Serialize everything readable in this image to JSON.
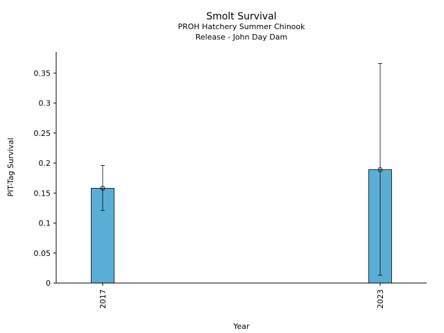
{
  "chart_data": {
    "type": "bar",
    "title": "Smolt Survival",
    "subtitle": [
      "PROH Hatchery Summer Chinook",
      "Release - John Day Dam"
    ],
    "xlabel": "Year",
    "ylabel": "PIT-Tag Survival",
    "categories": [
      "2017",
      "2023"
    ],
    "values": [
      0.158,
      0.189
    ],
    "error_low": [
      0.121,
      0.013
    ],
    "error_high": [
      0.196,
      0.366
    ],
    "ylim": [
      0,
      0.385
    ],
    "yticks": [
      0,
      0.05,
      0.1,
      0.15,
      0.2,
      0.25,
      0.3,
      0.35
    ],
    "ytick_labels": [
      "0",
      "0.05",
      "0.1",
      "0.15",
      "0.2",
      "0.25",
      "0.3",
      "0.35"
    ],
    "grid": false,
    "bar_color": "#5aaed6",
    "edge_color": "#000000"
  }
}
